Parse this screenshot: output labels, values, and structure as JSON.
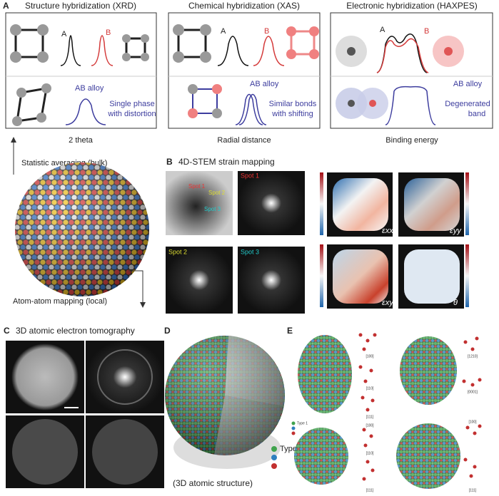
{
  "panel_a": {
    "label": "A",
    "columns": [
      {
        "title": "Structure hybridization (XRD)",
        "label_a": "A",
        "label_b": "B",
        "alloy": "AB alloy",
        "note": [
          "Single phase",
          "with distortion"
        ],
        "axis": "2 theta"
      },
      {
        "title": "Chemical hybridization (XAS)",
        "label_a": "A",
        "label_b": "B",
        "alloy": "AB alloy",
        "note": [
          "Similar bonds",
          "with shifting"
        ],
        "axis": "Radial distance"
      },
      {
        "title": "Electronic hybridization (HAXPES)",
        "label_a": "A",
        "label_b": "B",
        "alloy": "AB alloy",
        "note": [
          "Degenerated",
          "band"
        ],
        "axis": "Binding energy"
      }
    ],
    "up": "Statistic averaging (bulk)",
    "down": "Atom-atom mapping (local)"
  },
  "panel_b": {
    "label": "B",
    "title": "4D-STEM strain mapping",
    "image_spots": [
      "Spot 1",
      "Spot 2",
      "Spot 3"
    ],
    "panels": [
      "Spot 1",
      "Spot 2",
      "Spot 3"
    ],
    "maps": [
      "εxx",
      "εyy",
      "εxy",
      "θ"
    ]
  },
  "panel_c": {
    "label": "C",
    "title": "3D atomic electron tomography"
  },
  "panel_d": {
    "label": "D",
    "legend": "Type",
    "caption": "(3D atomic structure)"
  },
  "panel_e": {
    "label": "E",
    "legend": "Type 1",
    "directions": [
      "[100]",
      "[110]",
      "[111]",
      "[1210]",
      "[0001]",
      "[100]",
      "[110]",
      "[111]",
      "[100]",
      "[111]"
    ]
  }
}
